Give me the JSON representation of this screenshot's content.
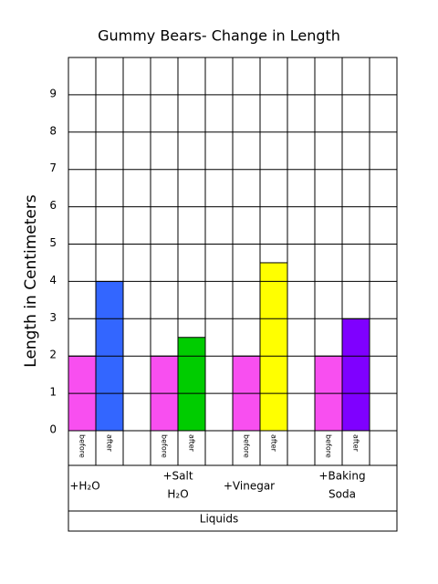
{
  "chart_data": {
    "type": "bar",
    "title": "Gummy Bears- Change in Length",
    "y_label": "Length in Centimeters",
    "x_label": "Liquids",
    "categories": [
      [
        "+H₂O"
      ],
      [
        "+Salt",
        "H₂O"
      ],
      [
        "+Vinegar"
      ],
      [
        "+Baking",
        "Soda"
      ]
    ],
    "series": [
      {
        "name": "before",
        "colors": [
          "#f84ff0",
          "#f84ff0",
          "#f84ff0",
          "#f84ff0"
        ],
        "values": [
          2,
          2,
          2,
          2
        ]
      },
      {
        "name": "after",
        "colors": [
          "#3366ff",
          "#00cc00",
          "#ffff00",
          "#7f00ff"
        ],
        "values": [
          4,
          2.5,
          4.5,
          3
        ]
      }
    ],
    "ylim": [
      0,
      10
    ],
    "yticks": [
      0,
      1,
      2,
      3,
      4,
      5,
      6,
      7,
      8,
      9
    ],
    "grid": true
  }
}
